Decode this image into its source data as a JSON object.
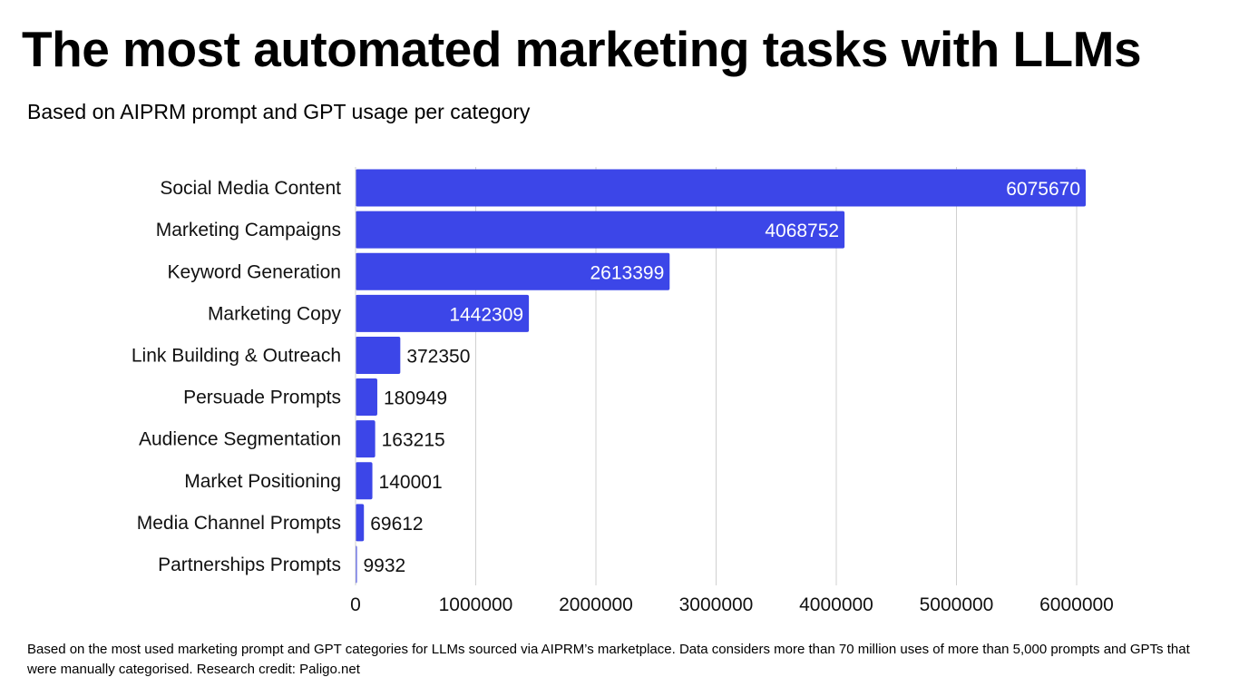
{
  "chart_data": {
    "type": "bar",
    "orientation": "horizontal",
    "title": "The most automated marketing tasks with LLMs",
    "subtitle": "Based on AIPRM prompt and GPT usage per category",
    "categories": [
      "Social Media Content",
      "Marketing Campaigns",
      "Keyword Generation",
      "Marketing Copy",
      "Link Building & Outreach",
      "Persuade Prompts",
      "Audience Segmentation",
      "Market Positioning",
      "Media Channel Prompts",
      "Partnerships Prompts"
    ],
    "values": [
      6075670,
      4068752,
      2613399,
      1442309,
      372350,
      180949,
      163215,
      140001,
      69612,
      9932
    ],
    "xlim": [
      0,
      6000000
    ],
    "xticks": [
      0,
      1000000,
      2000000,
      3000000,
      4000000,
      5000000,
      6000000
    ],
    "xtick_labels": [
      "0",
      "1000000",
      "2000000",
      "3000000",
      "4000000",
      "5000000",
      "6000000"
    ],
    "xlabel": "",
    "ylabel": "",
    "grid": "vertical",
    "bar_color": "#3c46e8",
    "footnote": "Based on the most used marketing prompt and GPT categories for LLMs sourced via AIPRM’s marketplace. Data considers more than 70 million uses of more than 5,000 prompts and GPTs that were manually categorised. Research credit: Paligo.net"
  }
}
